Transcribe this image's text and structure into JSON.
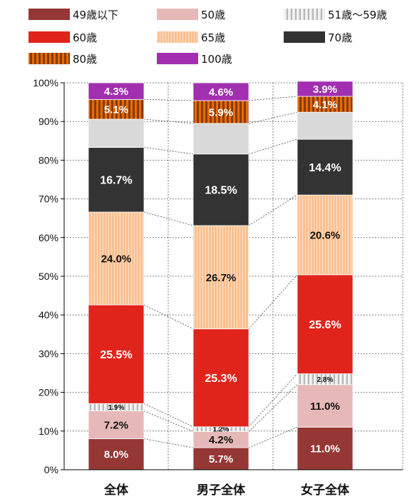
{
  "chart_data": {
    "type": "bar",
    "stacked": true,
    "categories": [
      "全体",
      "男子全体",
      "女子全体"
    ],
    "ylim": [
      0,
      100
    ],
    "yticks": [
      "0%",
      "10%",
      "20%",
      "30%",
      "40%",
      "50%",
      "60%",
      "70%",
      "80%",
      "90%",
      "100%"
    ],
    "grid": "horizontal dotted",
    "legend_position": "top",
    "series": [
      {
        "name": "49歳以下",
        "color": "#953735",
        "pattern": "solid",
        "values": [
          8.0,
          5.7,
          11.0
        ],
        "labels": [
          "8.0%",
          "5.7%",
          "11.0%"
        ]
      },
      {
        "name": "50歳",
        "color": "#e6b9b8",
        "pattern": "solid",
        "values": [
          7.2,
          4.2,
          11.0
        ],
        "labels": [
          "7.2%",
          "4.2%",
          "11.0%"
        ]
      },
      {
        "name": "51歳～59歳",
        "color": "#d0d0d0",
        "pattern": "vertical-stripes",
        "values": [
          1.9,
          1.2,
          2.8
        ],
        "labels": [
          "1.9%",
          "1.2%",
          "2.8%"
        ]
      },
      {
        "name": "60歳",
        "color": "#e0241b",
        "pattern": "solid",
        "values": [
          25.5,
          25.3,
          25.6
        ],
        "labels": [
          "25.5%",
          "25.3%",
          "25.6%"
        ]
      },
      {
        "name": "65歳",
        "color": "#fac090",
        "pattern": "vertical-stripes",
        "values": [
          24.0,
          26.7,
          20.6
        ],
        "labels": [
          "24.0%",
          "26.7%",
          "20.6%"
        ]
      },
      {
        "name": "70歳",
        "color": "#333333",
        "pattern": "solid",
        "values": [
          16.7,
          18.5,
          14.4
        ],
        "labels": [
          "16.7%",
          "18.5%",
          "14.4%"
        ]
      },
      {
        "name": "80歳",
        "color": "#c0500a",
        "pattern": "vertical-stripes",
        "values": [
          5.1,
          5.9,
          4.1
        ],
        "labels": [
          "5.1%",
          "5.9%",
          "4.1%"
        ]
      },
      {
        "name": "100歳",
        "color": "#a12fb0",
        "pattern": "solid",
        "values": [
          4.3,
          4.6,
          3.9
        ],
        "labels": [
          "4.3%",
          "4.6%",
          "3.9%"
        ]
      }
    ],
    "unlabeled_segment": {
      "color": "#d9d9d9",
      "values": [
        7.3,
        7.9,
        7.0
      ]
    }
  }
}
